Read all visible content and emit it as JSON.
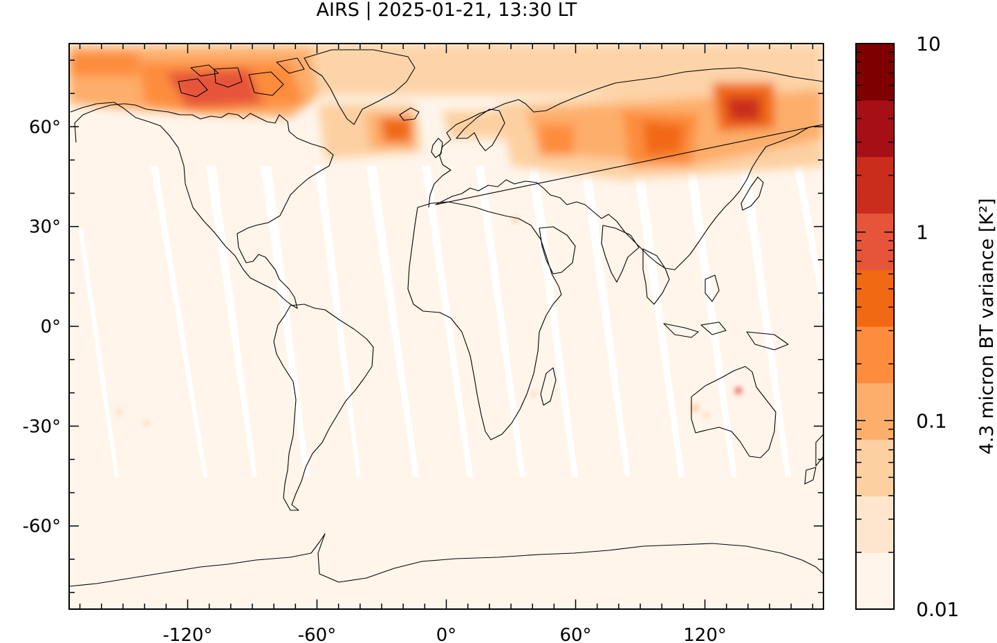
{
  "title": "AIRS | 2025-01-21, 13:30 LT",
  "map": {
    "projection": "plate-carree",
    "lon_range": [
      -175,
      175
    ],
    "lat_range": [
      -85,
      85
    ],
    "x_ticks": [
      {
        "value": -120,
        "label": "-120°"
      },
      {
        "value": -60,
        "label": "-60°"
      },
      {
        "value": 0,
        "label": "0°"
      },
      {
        "value": 60,
        "label": "60°"
      },
      {
        "value": 120,
        "label": "120°"
      }
    ],
    "y_ticks": [
      {
        "value": 60,
        "label": "60°"
      },
      {
        "value": 30,
        "label": "30°"
      },
      {
        "value": 0,
        "label": "0°"
      },
      {
        "value": -30,
        "label": "-30°"
      },
      {
        "value": -60,
        "label": "-60°"
      }
    ],
    "background_color": "#fff5eb",
    "coastline_color": "#000000"
  },
  "colorbar": {
    "title": "4.3 micron BT variance [K²]",
    "scale": "log",
    "range": [
      0.01,
      10
    ],
    "labels": [
      {
        "value": 10,
        "text": "10"
      },
      {
        "value": 1,
        "text": "1"
      },
      {
        "value": 0.1,
        "text": "0.1"
      },
      {
        "value": 0.01,
        "text": "0.01"
      }
    ],
    "colors": [
      "#fff5eb",
      "#fee6ce",
      "#fdd0a2",
      "#fdae6b",
      "#fd8d3c",
      "#f16913",
      "#e6553a",
      "#cb2d1d",
      "#a50f15",
      "#7f0000"
    ]
  }
}
